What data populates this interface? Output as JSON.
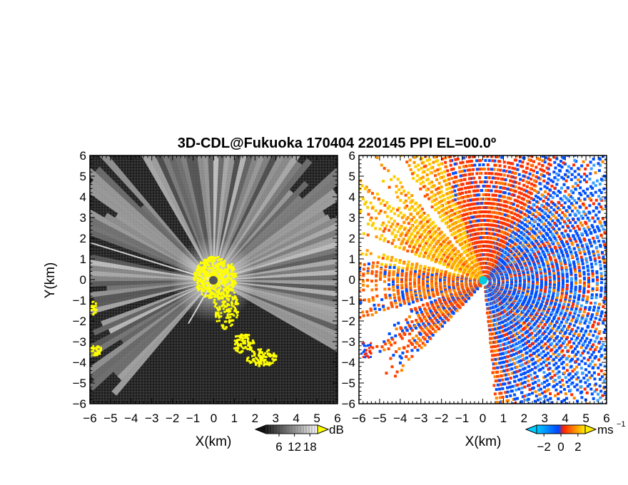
{
  "title": "3D-CDL@Fukuoka 170404 220145 PPI EL=00.0º",
  "chart_data": [
    {
      "type": "heatmap",
      "panel": "left",
      "xlabel": "X(km)",
      "ylabel": "Y(km)",
      "xlim": [
        -6,
        6
      ],
      "ylim": [
        -6,
        6
      ],
      "xticks": [
        "−6",
        "−5",
        "−4",
        "−3",
        "−2",
        "−1",
        "0",
        "1",
        "2",
        "3",
        "4",
        "5",
        "6"
      ],
      "yticks": [
        "6",
        "5",
        "4",
        "3",
        "2",
        "1",
        "0",
        "−1",
        "−2",
        "−3",
        "−4",
        "−5",
        "−6"
      ],
      "colorbar": {
        "unit": "dB",
        "ticks": [
          "6",
          "12",
          "18"
        ],
        "colors": [
          "#111111",
          "#ffffff"
        ],
        "overflow_color": "#ffff00"
      },
      "radar_origin": [
        0,
        0
      ]
    },
    {
      "type": "heatmap",
      "panel": "right",
      "xlabel": "X(km)",
      "ylabel": "",
      "xlim": [
        -6,
        6
      ],
      "ylim": [
        -6,
        6
      ],
      "xticks": [
        "−6",
        "−5",
        "−4",
        "−3",
        "−2",
        "−1",
        "0",
        "1",
        "2",
        "3",
        "4",
        "5",
        "6"
      ],
      "yticks": [
        "6",
        "5",
        "4",
        "3",
        "2",
        "1",
        "0",
        "−1",
        "−2",
        "−3",
        "−4",
        "−5",
        "−6"
      ],
      "colorbar": {
        "unit": "ms",
        "unit_exp": "−1",
        "ticks": [
          "−2",
          "0",
          "2"
        ],
        "colors": [
          "#00ccff",
          "#0044ff",
          "#ff2200",
          "#ffee00"
        ]
      },
      "radar_origin": [
        0,
        0
      ]
    }
  ]
}
